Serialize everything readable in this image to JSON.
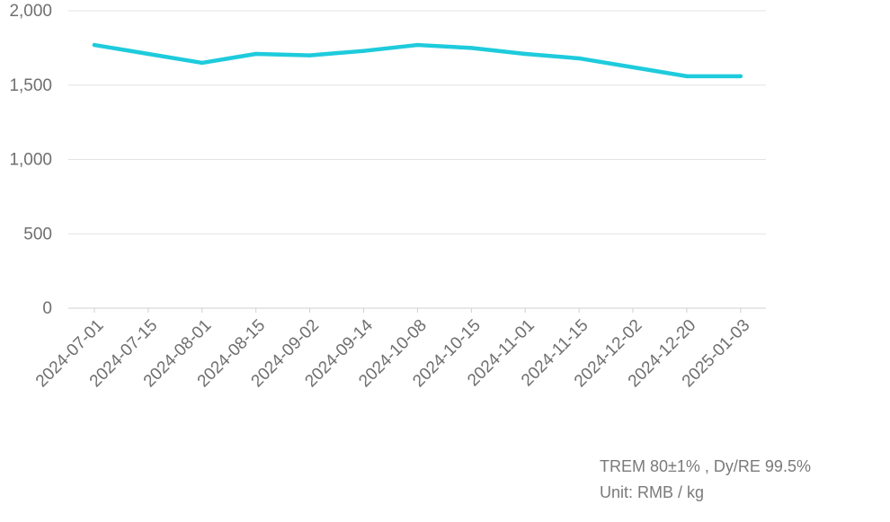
{
  "chart_data": {
    "type": "line",
    "x": [
      "2024-07-01",
      "2024-07-15",
      "2024-08-01",
      "2024-08-15",
      "2024-09-02",
      "2024-09-14",
      "2024-10-08",
      "2024-10-15",
      "2024-11-01",
      "2024-11-15",
      "2024-12-02",
      "2024-12-20",
      "2025-01-03"
    ],
    "series": [
      {
        "values": [
          1770,
          1710,
          1650,
          1710,
          1700,
          1730,
          1770,
          1750,
          1710,
          1680,
          1620,
          1560,
          1560
        ],
        "color": "#1ecbdc"
      }
    ],
    "yticks": [
      "2,000",
      "1,500",
      "1,000",
      "500",
      "0"
    ],
    "ylim": [
      0,
      2000
    ],
    "grid": true,
    "title": "",
    "xlabel": "",
    "ylabel": ""
  },
  "caption": {
    "line1": "TREM 80±1% , Dy/RE 99.5%",
    "line2": "Unit: RMB / kg"
  }
}
